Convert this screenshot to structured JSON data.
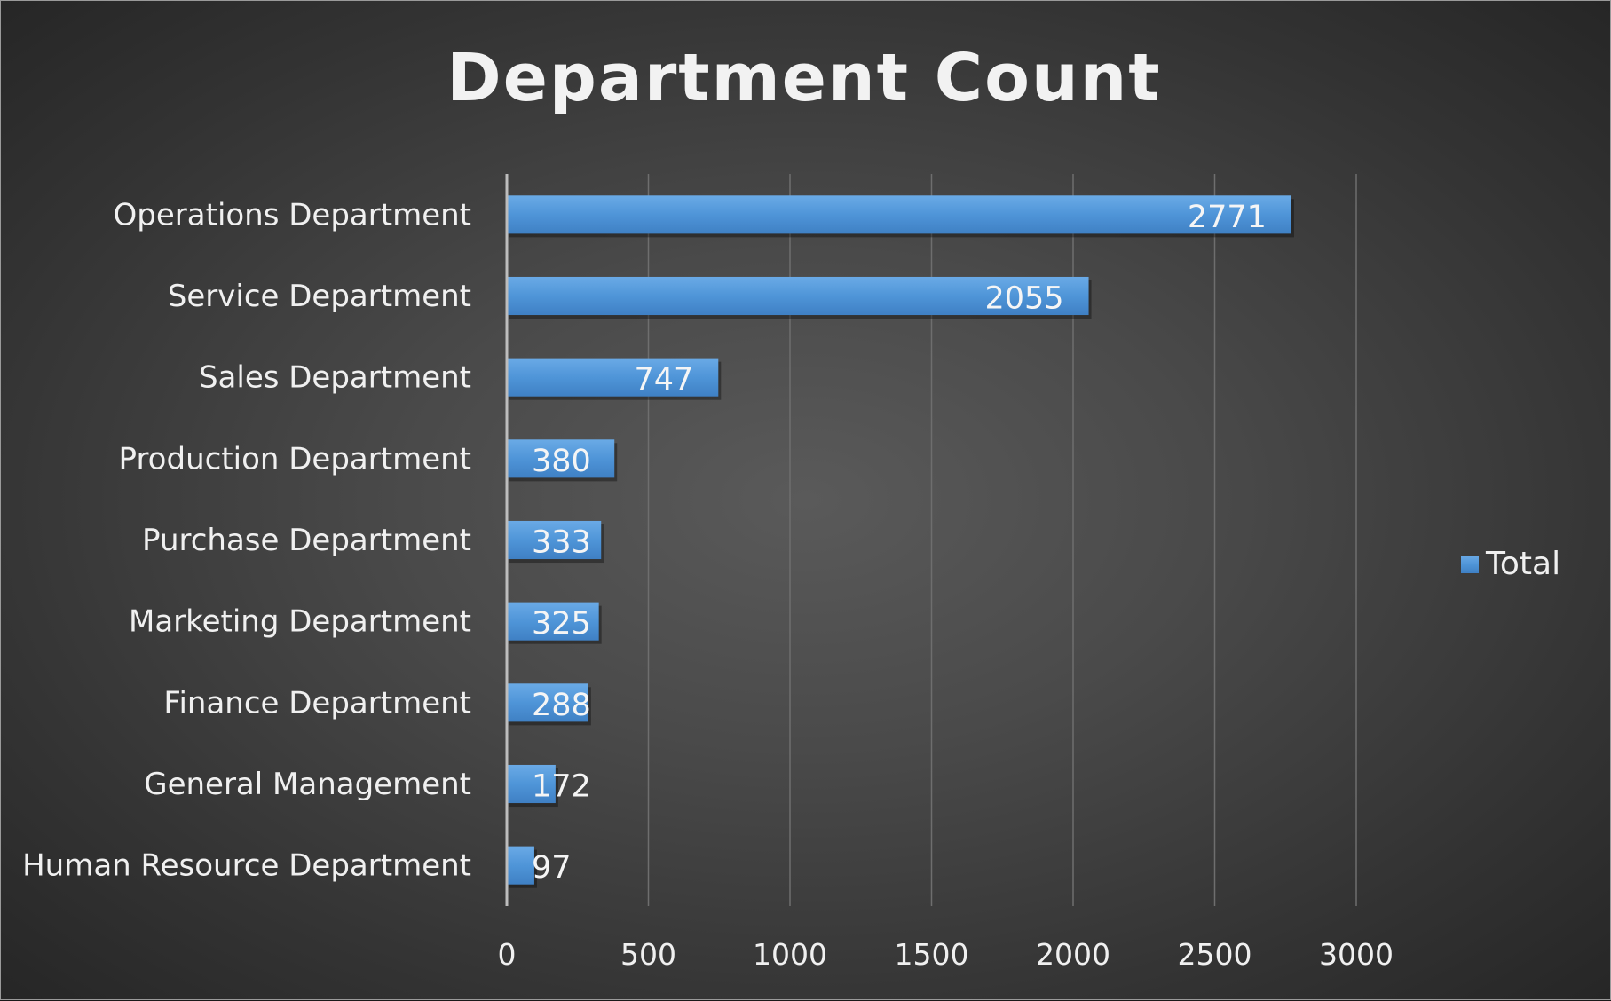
{
  "chart_data": {
    "type": "bar",
    "orientation": "horizontal",
    "title": "Department Count",
    "categories": [
      "Operations Department",
      "Service Department",
      "Sales Department",
      "Production Department",
      "Purchase Department",
      "Marketing Department",
      "Finance Department",
      "General Management",
      "Human Resource Department"
    ],
    "series": [
      {
        "name": "Total",
        "color": "#4f95d8",
        "values": [
          2771,
          2055,
          747,
          380,
          333,
          325,
          288,
          172,
          97
        ]
      }
    ],
    "xlim": [
      0,
      3000
    ],
    "xticks": [
      0,
      500,
      1000,
      1500,
      2000,
      2500,
      3000
    ],
    "grid": "vertical",
    "legend_position": "right",
    "data_labels": true
  }
}
